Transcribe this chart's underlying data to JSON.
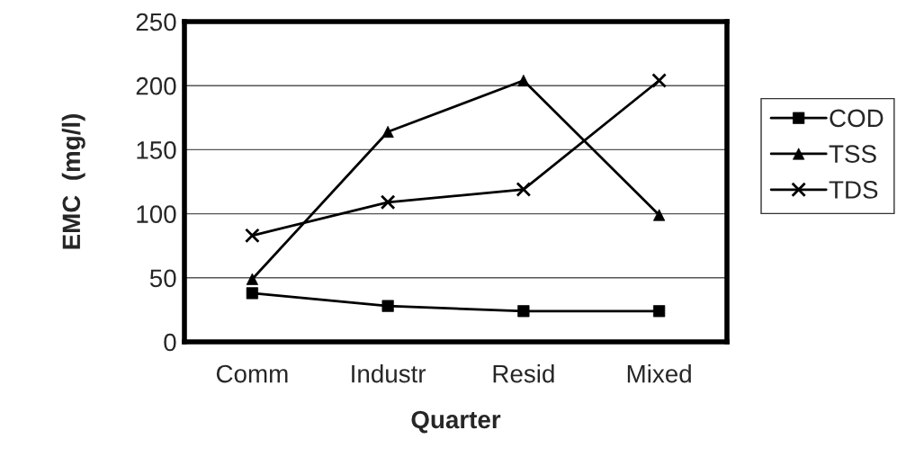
{
  "chart_data": {
    "type": "line",
    "xlabel": "Quarter",
    "ylabel": "EMC  (mg/l)",
    "categories": [
      "Comm",
      "Industr",
      "Resid",
      "Mixed"
    ],
    "series": [
      {
        "name": "COD",
        "color": "#000000",
        "marker": "square",
        "values": [
          38,
          28,
          24,
          24
        ]
      },
      {
        "name": "TSS",
        "color": "#000000",
        "marker": "triangle",
        "values": [
          49,
          164,
          204,
          99
        ]
      },
      {
        "name": "TDS",
        "color": "#000000",
        "marker": "cross",
        "values": [
          83,
          109,
          119,
          204
        ]
      }
    ],
    "ylim": [
      0,
      250
    ],
    "yticks": [
      0,
      50,
      100,
      150,
      200,
      250
    ],
    "grid": "y",
    "legend": "right",
    "line_style": "solid"
  }
}
